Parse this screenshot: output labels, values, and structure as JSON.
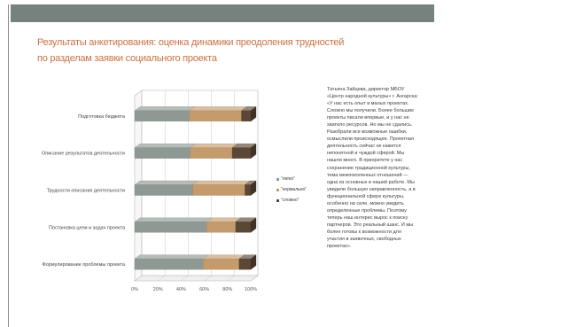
{
  "slide": {
    "title_line1": "Результаты анкетирования: оценка динамики преодоления трудностей",
    "title_line2": "по разделам заявки социального проекта",
    "quote": "Татьяна Зайцева, директор МБОУ «Центр народной культуры» г. Ангарска: «У нас есть опыт в малых проектах. Сложно мы получили. Более большие проекты писали впервые, и у нас не хватило ресурсов. Но мы не сдались. Разобрали все возможные ошибки, осмыслили происходящее. Проектная деятельность сейчас не кажется непонятной и чуждой сферой. Мы нашли много. В приоритете у нас сохранение традиционной культуры, тема межпоколенных отношений — одна из основных в нашей работе. Мы увидели большую направленность, а в функциональной сфере культуры, особенно на селе, можно увидеть определенные проблемы. Поэтому теперь наш интерес вырос к поиску партнеров. Это реальный шанс. И мы более готовы к возможности для участия в заявочных, свободных проектах»."
  },
  "colors": {
    "header": "#76827d",
    "title": "#c57447",
    "series": [
      "#8e9994",
      "#c49b6d",
      "#5b4735"
    ]
  },
  "chart_data": {
    "type": "bar",
    "orientation": "horizontal",
    "stacked": true,
    "three_d": true,
    "categories": [
      "Подготовка бюджета",
      "Описание результатов деятельности",
      "Трудности описания деятельности",
      "Постановка цели и задач проекта",
      "Формулирование проблемы проекта"
    ],
    "series": [
      {
        "name": "“легко”",
        "values": [
          47,
          48,
          50,
          62,
          59
        ]
      },
      {
        "name": "“нормально”",
        "values": [
          45,
          36,
          45,
          25,
          31
        ]
      },
      {
        "name": "“сложно”",
        "values": [
          8,
          16,
          5,
          13,
          10
        ]
      }
    ],
    "xlim": [
      0,
      100
    ],
    "x_ticks": [
      "0%",
      "20%",
      "40%",
      "60%",
      "80%",
      "100%"
    ],
    "grid": true,
    "legend": "right",
    "title": "",
    "xlabel": "",
    "ylabel": ""
  }
}
